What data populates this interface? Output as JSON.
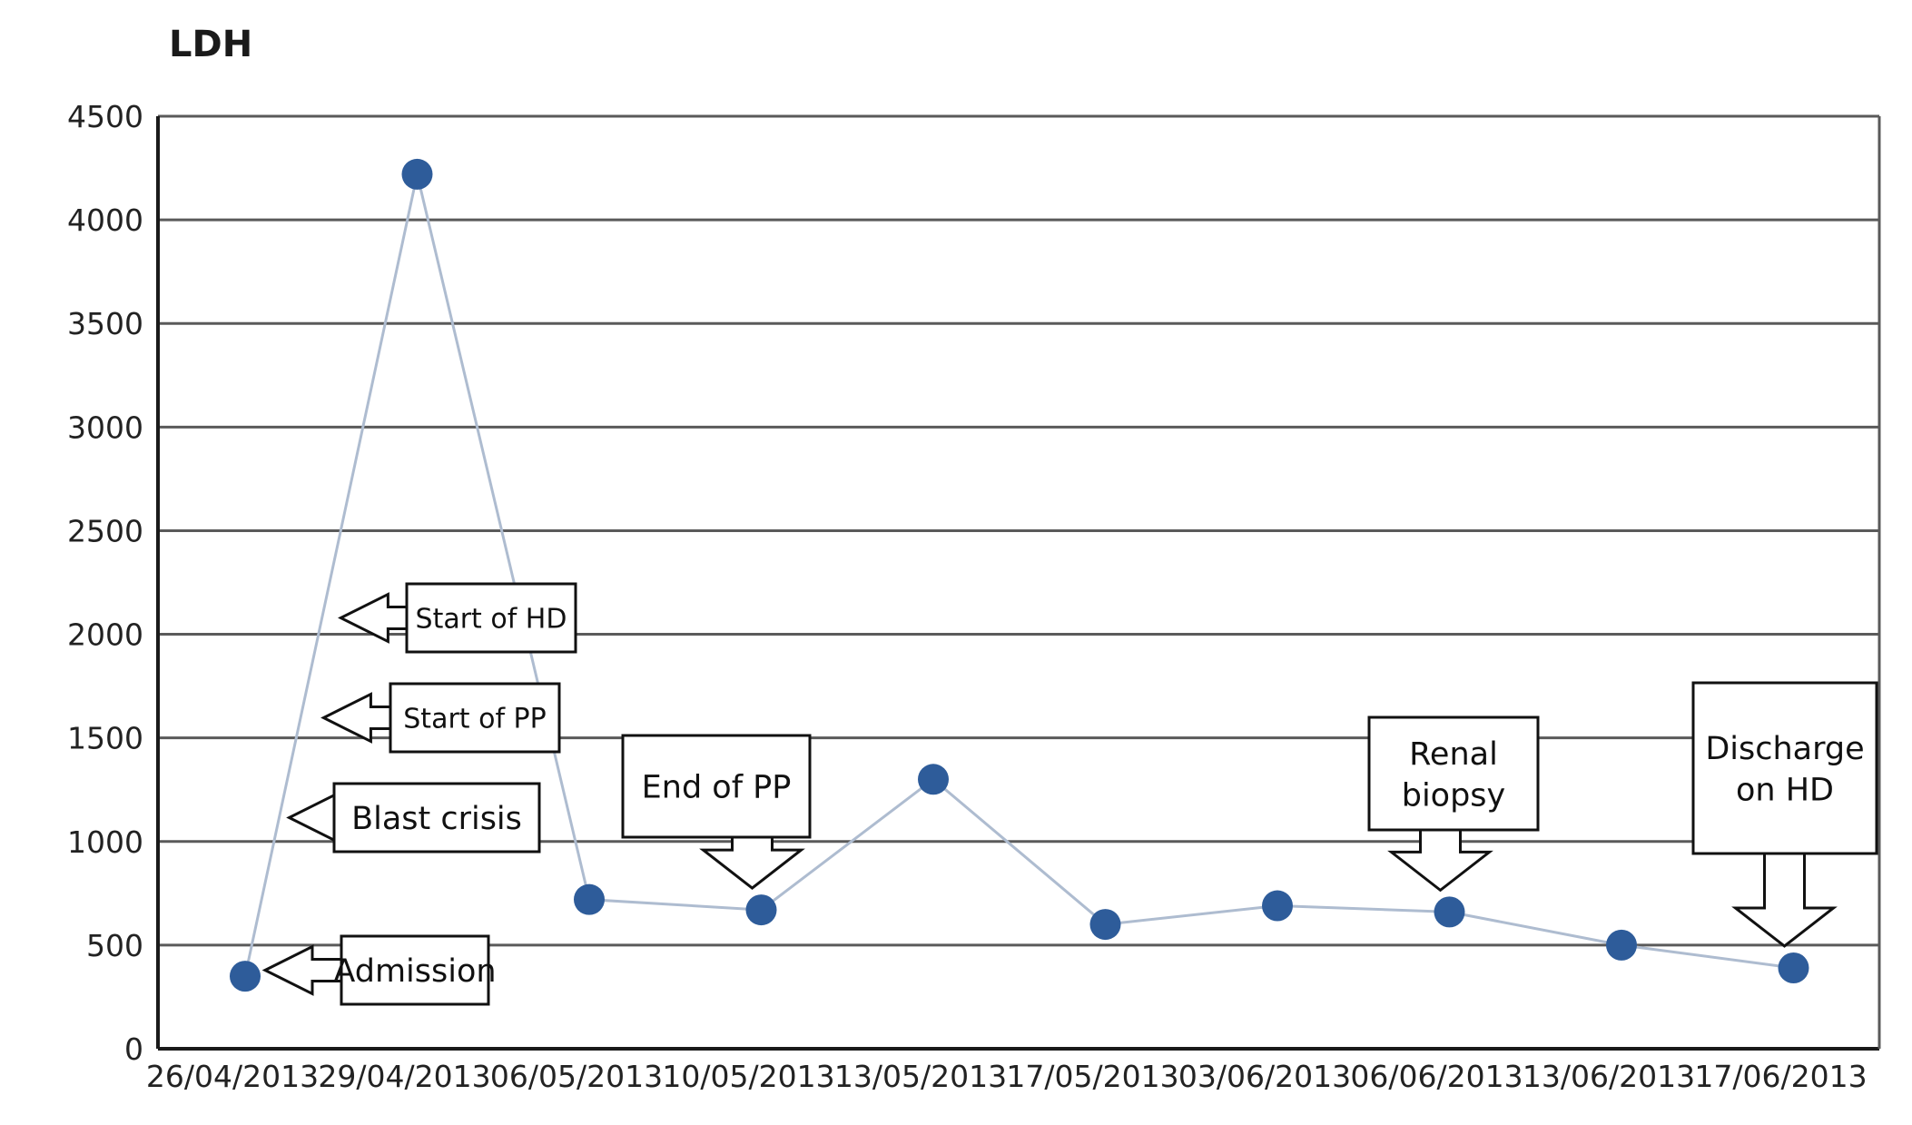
{
  "chart_data": {
    "type": "line",
    "title": "LDH",
    "xlabel": "",
    "ylabel": "",
    "categories": [
      "26/04/2013",
      "29/04/2013",
      "06/05/2013",
      "10/05/2013",
      "13/05/2013",
      "17/05/2013",
      "03/06/2013",
      "06/06/2013",
      "13/06/2013",
      "17/06/2013"
    ],
    "series": [
      {
        "values": [
          350,
          4220,
          720,
          670,
          1300,
          600,
          690,
          660,
          500,
          390
        ]
      }
    ],
    "ylim": [
      0,
      4500
    ],
    "yticks": [
      "0",
      "500",
      "1000",
      "1500",
      "2000",
      "2500",
      "3000",
      "3500",
      "4000",
      "4500"
    ],
    "grid": true,
    "legend": "none",
    "line_color": "#aebcd0",
    "marker_color": "#2e5c9a",
    "annotations": [
      {
        "lines": [
          "Start of HD"
        ],
        "pointer": "left",
        "x_index": 0.44,
        "y_value": 2060
      },
      {
        "lines": [
          "Start of PP"
        ],
        "pointer": "left",
        "x_index": 0.34,
        "y_value": 1580
      },
      {
        "lines": [
          "Blast crisis"
        ],
        "pointer": "left",
        "x_index": 0.14,
        "y_value": 1080
      },
      {
        "lines": [
          "Admission"
        ],
        "pointer": "left",
        "x_index": 0,
        "y_value": 350
      },
      {
        "lines": [
          "End of PP"
        ],
        "pointer": "down",
        "x_index": 3,
        "y_value": 670
      },
      {
        "lines": [
          "Renal",
          "biopsy"
        ],
        "pointer": "down",
        "x_index": 7,
        "y_value": 660
      },
      {
        "lines": [
          "Discharge",
          "on HD"
        ],
        "pointer": "down",
        "x_index": 9,
        "y_value": 390
      }
    ]
  }
}
